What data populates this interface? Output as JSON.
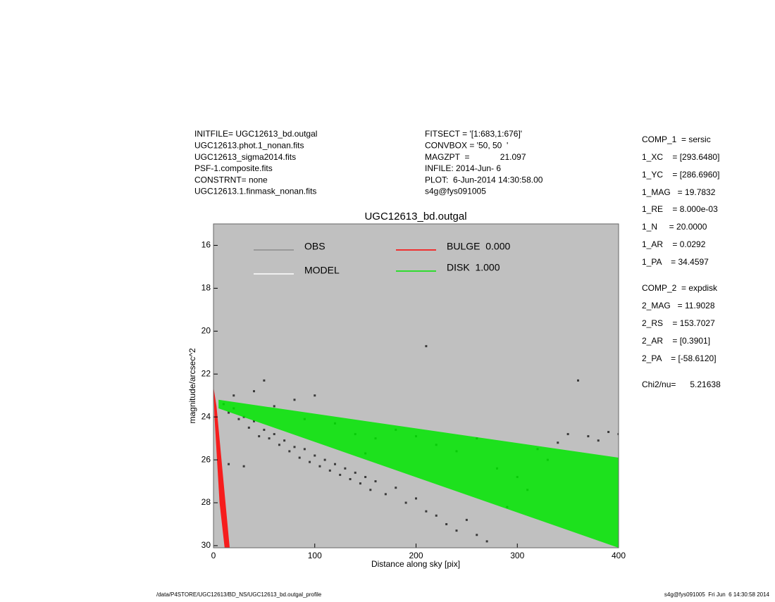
{
  "header_left": [
    "INITFILE= UGC12613_bd.outgal",
    "UGC12613.phot.1_nonan.fits",
    "UGC12613_sigma2014.fits",
    "PSF-1.composite.fits",
    "CONSTRNT= none",
    "UGC12613.1.finmask_nonan.fits"
  ],
  "header_mid": [
    "FITSECT = '[1:683,1:676]'",
    "CONVBOX = '50, 50  '",
    "MAGZPT  =             21.097",
    "INFILE: 2014-Jun- 6",
    "PLOT:  6-Jun-2014 14:30:58.00",
    "s4g@fys091005"
  ],
  "params": [
    "COMP_1  = sersic",
    "1_XC    = [293.6480]",
    "1_YC    = [286.6960]",
    "1_MAG   = 19.7832",
    "1_RE    = 8.000e-03",
    "1_N     = 20.0000",
    "1_AR    = 0.0292",
    "1_PA    = 34.4597",
    "COMP_2  = expdisk",
    "2_MAG   = 11.9028",
    "2_RS    = 153.7027",
    "2_AR    = [0.3901]",
    "2_PA    = [-58.6120]",
    "Chi2/nu=      5.21638"
  ],
  "footer_left": "/data/P4STORE/UGC12613/BD_NS/UGC12613_bd.outgal_profile",
  "footer_right": "s4g@fys091005  Fri Jun  6 14:30:58 2014",
  "chart_data": {
    "type": "scatter",
    "title": "UGC12613_bd.outgal",
    "x_label": "Distance along sky [pix]",
    "y_label": "magnitude/arcsec^2",
    "xlim": [
      0,
      400
    ],
    "xticks": [
      0,
      100,
      200,
      300,
      400
    ],
    "ylim": [
      30.1,
      15
    ],
    "yticks": [
      16,
      18,
      20,
      22,
      24,
      26,
      28,
      30
    ],
    "background": "#c0c0c0",
    "series": [
      {
        "name": "OBS",
        "color": "#8c8c8c",
        "marker_color": "#3a3a3a",
        "x": [
          10,
          15,
          20,
          25,
          30,
          35,
          40,
          45,
          50,
          55,
          60,
          65,
          70,
          75,
          80,
          85,
          90,
          95,
          100,
          105,
          110,
          115,
          120,
          125,
          130,
          135,
          140,
          145,
          150,
          155,
          160,
          170,
          180,
          190,
          200,
          210,
          220,
          230,
          240,
          250,
          260,
          270,
          20,
          40,
          50,
          60,
          80,
          100,
          120,
          140,
          160,
          180,
          200,
          210,
          220,
          240,
          260,
          280,
          300,
          320,
          340,
          350,
          360,
          370,
          380,
          390,
          400,
          330,
          310,
          290,
          150,
          90,
          30,
          15
        ],
        "values": [
          23.4,
          23.8,
          23.6,
          24.1,
          24.0,
          24.5,
          24.2,
          24.9,
          24.6,
          25.0,
          24.8,
          25.3,
          25.1,
          25.6,
          25.4,
          25.9,
          25.5,
          26.1,
          25.8,
          26.3,
          26.0,
          26.5,
          26.2,
          26.7,
          26.4,
          26.9,
          26.6,
          27.1,
          26.8,
          27.4,
          27.0,
          27.6,
          27.3,
          28.0,
          27.8,
          28.4,
          28.6,
          29.0,
          29.3,
          28.8,
          29.5,
          29.8,
          23.0,
          22.8,
          22.3,
          23.5,
          23.2,
          23.0,
          24.3,
          24.8,
          25.0,
          24.6,
          24.9,
          20.7,
          25.3,
          25.6,
          25.0,
          26.4,
          26.8,
          25.5,
          25.2,
          24.8,
          22.3,
          24.9,
          25.1,
          24.7,
          24.8,
          26.0,
          27.4,
          28.2,
          25.7,
          24.1,
          26.3,
          26.2
        ]
      },
      {
        "name": "MODEL",
        "color": "#ffffff"
      },
      {
        "name": "BULGE  0.000",
        "color": "#ff0000",
        "x": [
          0,
          3,
          16,
          11,
          6,
          1
        ],
        "values": [
          22.6,
          23.5,
          30.1,
          30.1,
          28,
          24
        ]
      },
      {
        "name": "DISK  1.000",
        "color": "#00e600",
        "x": [
          5,
          400,
          400,
          5
        ],
        "values": [
          23.2,
          25.9,
          30.1,
          23.6
        ]
      }
    ]
  }
}
